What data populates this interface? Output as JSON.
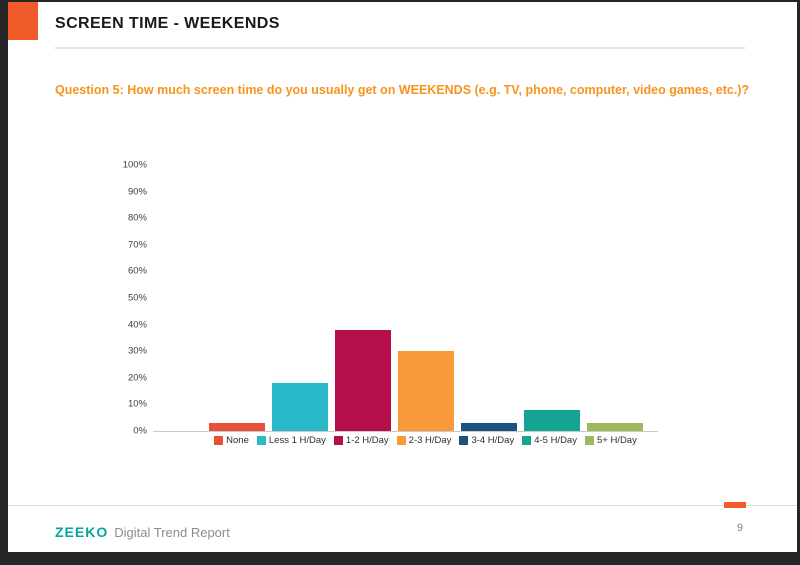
{
  "header": {
    "title": "SCREEN TIME - WEEKENDS"
  },
  "question": {
    "text": "Question 5: How much screen time do you usually get on WEEKENDS (e.g. TV, phone, computer, video games, etc.)?"
  },
  "footer": {
    "brand": "ZEEKO",
    "report_name": "Digital Trend Report",
    "page_number": "9"
  },
  "colors": {
    "accent_orange": "#f15a29",
    "question_orange": "#f7941d",
    "brand_teal": "#00a79d",
    "page_border": "#262626"
  },
  "chart_data": {
    "type": "bar",
    "title": "",
    "xlabel": "",
    "ylabel": "",
    "categories": [
      "None",
      "Less 1 H/Day",
      "1-2 H/Day",
      "2-3 H/Day",
      "3-4 H/Day",
      "4-5 H/Day",
      "5+ H/Day"
    ],
    "values": [
      3,
      18,
      38,
      30,
      3,
      8,
      3
    ],
    "unit": "%",
    "bar_colors": [
      "#e8503a",
      "#29b9c9",
      "#b60d4b",
      "#f89a3c",
      "#1b537f",
      "#16a493",
      "#9cb95c"
    ],
    "ylim": [
      0,
      100
    ],
    "yticks": [
      0,
      10,
      20,
      30,
      40,
      50,
      60,
      70,
      80,
      90,
      100
    ],
    "ytick_suffix": "%",
    "grid": false,
    "legend_position": "bottom"
  }
}
